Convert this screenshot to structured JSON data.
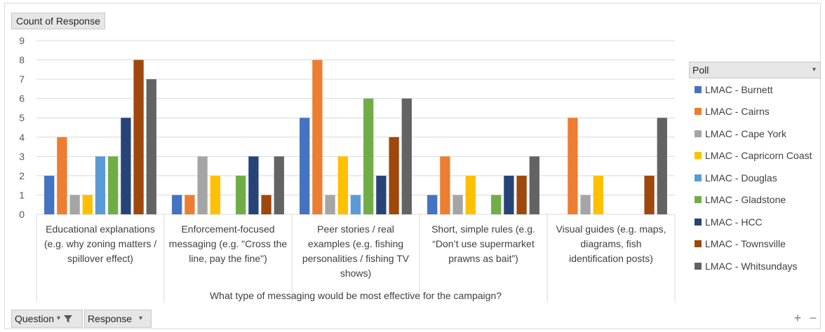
{
  "colors": {
    "series": [
      "#4472c4",
      "#ed7d31",
      "#a5a5a5",
      "#ffc000",
      "#5b9bd5",
      "#70ad47",
      "#264478",
      "#9e480e",
      "#636363"
    ],
    "grid": "#d9d9d9",
    "field_button_bg": "#e7e6e6"
  },
  "pivot": {
    "value_button": "Count of Response",
    "axis_buttons": [
      {
        "label": "Question",
        "icon": "filter-icon"
      },
      {
        "label": "Response",
        "icon": "dropdown-arrow-icon"
      }
    ],
    "legend_button": {
      "label": "Poll",
      "icon": "dropdown-arrow-icon"
    },
    "zoom_controls": [
      "+",
      "−"
    ]
  },
  "chart_data": {
    "type": "bar",
    "xlabel": "What type of messaging would be most effective for the campaign?",
    "ylabel": "",
    "ylim": [
      0,
      9
    ],
    "yticks": [
      "0",
      "1",
      "2",
      "3",
      "4",
      "5",
      "6",
      "7",
      "8",
      "9"
    ],
    "grid": true,
    "legend_position": "right",
    "categories": [
      [
        "Educational explanations",
        "(e.g. why zoning matters /",
        "spillover effect)"
      ],
      [
        "Enforcement-focused",
        "messaging (e.g. \"Cross the",
        "line, pay the fine\")"
      ],
      [
        "Peer stories / real",
        "examples (e.g. fishing",
        "personalities / fishing TV",
        "shows)"
      ],
      [
        "Short, simple rules (e.g.",
        "“Don’t use supermarket",
        "prawns as bait”)"
      ],
      [
        "Visual guides (e.g. maps,",
        "diagrams, fish",
        "identification posts)"
      ]
    ],
    "series": [
      {
        "name": "LMAC - Burnett",
        "values": [
          2,
          1,
          5,
          1,
          0
        ]
      },
      {
        "name": "LMAC - Cairns",
        "values": [
          4,
          1,
          8,
          3,
          5
        ]
      },
      {
        "name": "LMAC - Cape York",
        "values": [
          1,
          3,
          1,
          1,
          1
        ]
      },
      {
        "name": "LMAC - Capricorn Coast",
        "values": [
          1,
          2,
          3,
          2,
          2
        ]
      },
      {
        "name": "LMAC - Douglas",
        "values": [
          3,
          0,
          1,
          0,
          0
        ]
      },
      {
        "name": "LMAC - Gladstone",
        "values": [
          3,
          2,
          6,
          1,
          0
        ]
      },
      {
        "name": "LMAC - HCC",
        "values": [
          5,
          3,
          2,
          2,
          0
        ]
      },
      {
        "name": "LMAC - Townsville",
        "values": [
          8,
          1,
          4,
          2,
          2
        ]
      },
      {
        "name": "LMAC - Whitsundays",
        "values": [
          7,
          3,
          6,
          3,
          5
        ]
      }
    ]
  }
}
